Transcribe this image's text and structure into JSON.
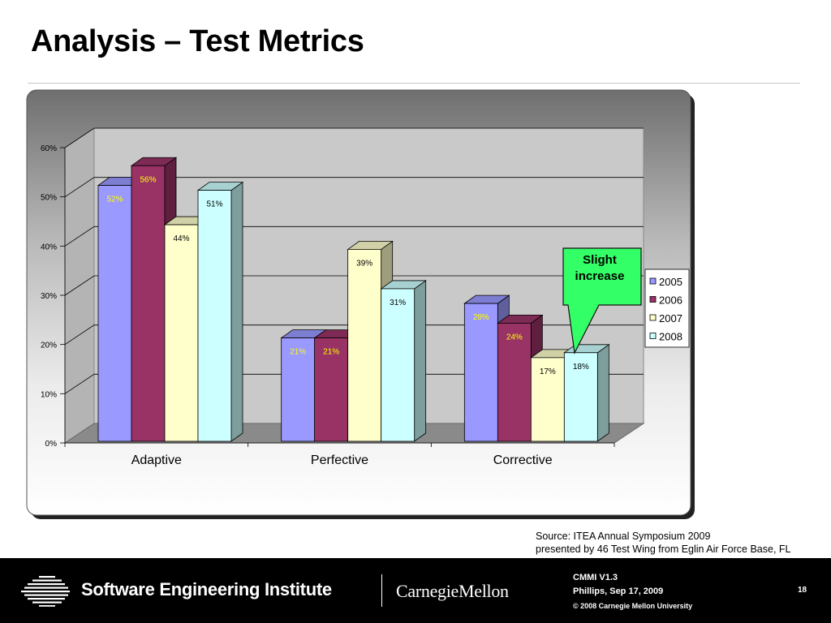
{
  "slide": {
    "title": "Analysis – Test Metrics",
    "source_line1": "Source: ITEA Annual Symposium 2009",
    "source_line2": "presented by 46 Test Wing from Eglin Air Force Base, FL"
  },
  "footer": {
    "sei_name": "Software Engineering Institute",
    "cmu_name": "CarnegieMellon",
    "version": "CMMI   V1.3",
    "presenter": "Phillips, Sep 17, 2009",
    "copyright": "© 2008 Carnegie Mellon University",
    "page_number": "18"
  },
  "callout": {
    "line1": "Slight",
    "line2": "increase"
  },
  "chart_data": {
    "type": "bar",
    "three_d": true,
    "categories": [
      "Adaptive",
      "Perfective",
      "Corrective"
    ],
    "series": [
      {
        "name": "2005",
        "values": [
          52,
          21,
          28
        ],
        "labels": [
          "52%",
          "21%",
          "28%"
        ],
        "color": "#9999FF",
        "label_color": "#FFFF00"
      },
      {
        "name": "2006",
        "values": [
          56,
          21,
          24
        ],
        "labels": [
          "56%",
          "21%",
          "24%"
        ],
        "color": "#993366",
        "label_color": "#FFFF00"
      },
      {
        "name": "2007",
        "values": [
          44,
          39,
          17
        ],
        "labels": [
          "44%",
          "39%",
          "17%"
        ],
        "color": "#FFFFCC",
        "label_color": "#000000"
      },
      {
        "name": "2008",
        "values": [
          51,
          31,
          18
        ],
        "labels": [
          "51%",
          "31%",
          "18%"
        ],
        "color": "#CCFFFF",
        "label_color": "#000000"
      }
    ],
    "yticks": [
      "0%",
      "10%",
      "20%",
      "30%",
      "40%",
      "50%",
      "60%"
    ],
    "ylim": [
      0,
      60
    ],
    "grid": true,
    "legend_position": "right"
  }
}
